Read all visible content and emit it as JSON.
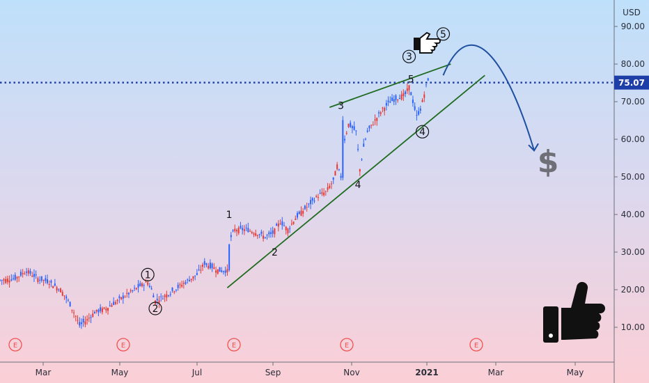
{
  "chart_data": {
    "type": "candlestick",
    "currency": "USD",
    "current_price": "75.07",
    "y_ticks": [
      "90.00",
      "80.00",
      "70.00",
      "60.00",
      "50.00",
      "40.00",
      "30.00",
      "20.00",
      "10.00"
    ],
    "ylim": [
      0,
      100
    ],
    "x_ticks": [
      "Mar",
      "May",
      "Jul",
      "Sep",
      "Nov",
      "2021",
      "Mar",
      "May"
    ],
    "earnings_marker": "E",
    "earnings_count": 6,
    "dollar_symbol": "$",
    "price_path": [
      [
        0,
        22.5
      ],
      [
        8,
        23
      ],
      [
        14,
        25
      ],
      [
        20,
        23
      ],
      [
        26,
        22
      ],
      [
        32,
        20
      ],
      [
        36,
        17
      ],
      [
        40,
        13
      ],
      [
        42,
        10.5
      ],
      [
        46,
        12
      ],
      [
        50,
        14
      ],
      [
        56,
        15
      ],
      [
        62,
        17
      ],
      [
        68,
        19
      ],
      [
        74,
        21
      ],
      [
        78,
        22
      ],
      [
        80,
        20
      ],
      [
        82,
        17
      ],
      [
        86,
        18
      ],
      [
        92,
        20
      ],
      [
        98,
        22
      ],
      [
        104,
        24
      ],
      [
        108,
        27
      ],
      [
        112,
        26
      ],
      [
        116,
        25
      ],
      [
        120,
        25
      ],
      [
        121,
        33
      ],
      [
        124,
        36
      ],
      [
        130,
        36
      ],
      [
        136,
        35
      ],
      [
        140,
        34
      ],
      [
        144,
        35
      ],
      [
        148,
        38
      ],
      [
        152,
        36
      ],
      [
        156,
        39
      ],
      [
        160,
        41
      ],
      [
        164,
        43
      ],
      [
        168,
        45
      ],
      [
        172,
        46
      ],
      [
        176,
        49
      ],
      [
        178,
        53
      ],
      [
        180,
        50
      ],
      [
        181,
        66
      ],
      [
        182,
        60
      ],
      [
        184,
        64
      ],
      [
        188,
        62
      ],
      [
        190,
        52
      ],
      [
        192,
        58
      ],
      [
        194,
        62
      ],
      [
        198,
        65
      ],
      [
        202,
        68
      ],
      [
        206,
        70
      ],
      [
        210,
        71
      ],
      [
        214,
        72
      ],
      [
        216,
        74
      ],
      [
        218,
        70
      ],
      [
        220,
        66
      ],
      [
        222,
        68
      ],
      [
        224,
        72
      ],
      [
        226,
        76
      ]
    ],
    "wave_labels": [
      {
        "text": "1",
        "x": 78,
        "y": 24,
        "circled": true
      },
      {
        "text": "2",
        "x": 82,
        "y": 15,
        "circled": true
      },
      {
        "text": "1",
        "x": 121,
        "y": 40,
        "circled": false
      },
      {
        "text": "2",
        "x": 145,
        "y": 30,
        "circled": false
      },
      {
        "text": "3",
        "x": 180,
        "y": 69,
        "circled": false
      },
      {
        "text": "4",
        "x": 189,
        "y": 48,
        "circled": false
      },
      {
        "text": "3",
        "x": 216,
        "y": 82,
        "circled": true
      },
      {
        "text": "5",
        "x": 217,
        "y": 76,
        "circled": false
      },
      {
        "text": "4",
        "x": 223,
        "y": 62,
        "circled": true
      },
      {
        "text": "5",
        "x": 234,
        "y": 88,
        "circled": true
      }
    ],
    "wedge_upper": [
      [
        174,
        68.5
      ],
      [
        238,
        80
      ]
    ],
    "wedge_lower": [
      [
        120,
        20.5
      ],
      [
        256,
        77
      ]
    ],
    "forecast_arrow": [
      [
        234,
        77
      ],
      [
        250,
        85
      ],
      [
        266,
        76
      ],
      [
        282,
        57
      ]
    ]
  }
}
